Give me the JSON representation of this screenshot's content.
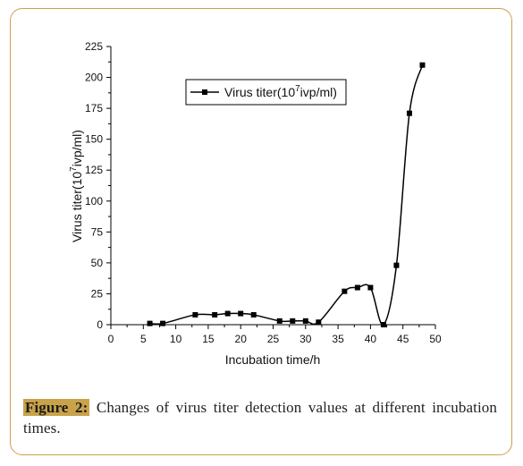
{
  "caption": {
    "label": "Figure 2:",
    "text": " Changes of virus titer detection values at different incubation times."
  },
  "colors": {
    "frame": "#c9a24a",
    "series": "#000000"
  },
  "chart_data": {
    "type": "line",
    "xlabel": "Incubation time/h",
    "ylabel_main": "Virus titer(10",
    "ylabel_sup": "7",
    "ylabel_tail": "ivp/ml)",
    "xlim": [
      0,
      50
    ],
    "ylim": [
      0,
      225
    ],
    "xticks": [
      0,
      5,
      10,
      15,
      20,
      25,
      30,
      35,
      40,
      45,
      50
    ],
    "yticks": [
      0,
      25,
      50,
      75,
      100,
      125,
      150,
      175,
      200,
      225
    ],
    "grid": false,
    "legend": "top-left",
    "series": [
      {
        "name_main": "Virus titer(10",
        "name_sup": "7",
        "name_tail": "ivp/ml)",
        "marker": "square",
        "x": [
          6,
          8,
          13,
          16,
          18,
          20,
          22,
          26,
          28,
          30,
          32,
          36,
          38,
          40,
          42,
          44,
          46,
          48
        ],
        "y": [
          1,
          1,
          8,
          8,
          9,
          9,
          8,
          3,
          3,
          3,
          2,
          27,
          30,
          30,
          0,
          48,
          171,
          210
        ]
      }
    ]
  }
}
